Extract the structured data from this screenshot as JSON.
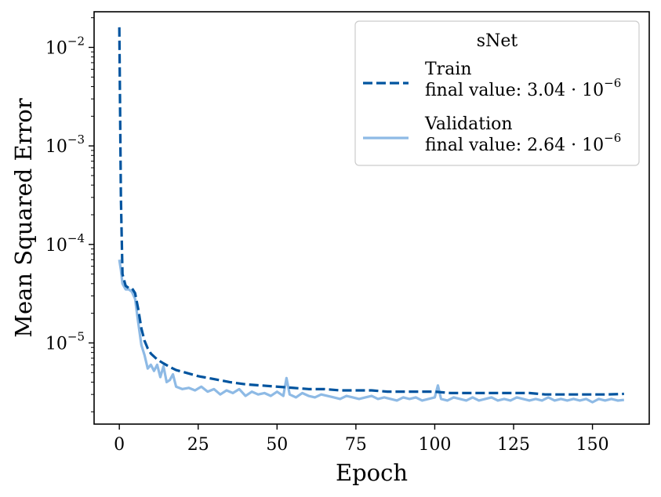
{
  "chart_data": {
    "type": "line",
    "title": "",
    "xlabel": "Epoch",
    "ylabel": "Mean Squared Error",
    "xscale": "linear",
    "yscale": "log",
    "xlim": [
      -8,
      168
    ],
    "ylim": [
      1.5e-06,
      0.023
    ],
    "xticks": [
      0,
      25,
      50,
      75,
      100,
      125,
      150
    ],
    "xtick_labels": [
      "0",
      "25",
      "50",
      "75",
      "100",
      "125",
      "150"
    ],
    "yticks": [
      1e-05,
      0.0001,
      0.001,
      0.01
    ],
    "ytick_labels": [
      {
        "base": "10",
        "exp": "−5"
      },
      {
        "base": "10",
        "exp": "−4"
      },
      {
        "base": "10",
        "exp": "−3"
      },
      {
        "base": "10",
        "exp": "−2"
      }
    ],
    "legend": {
      "title": "sNet",
      "placement": "top-right",
      "entries": [
        {
          "series": "Train",
          "line1": "Train",
          "line2": "final value: 3.04 · 10",
          "line2_exp": "−6"
        },
        {
          "series": "Validation",
          "line1": "Validation",
          "line2": "final value: 2.64 · 10",
          "line2_exp": "−6"
        }
      ]
    },
    "series": [
      {
        "name": "Train",
        "color": "#00549f",
        "style": "dashed",
        "x": [
          0,
          0.5,
          1,
          2,
          3,
          4,
          5,
          6,
          7,
          8,
          9,
          10,
          12,
          14,
          16,
          18,
          20,
          25,
          30,
          35,
          40,
          45,
          50,
          55,
          60,
          65,
          70,
          75,
          80,
          85,
          90,
          95,
          100,
          105,
          110,
          115,
          120,
          125,
          130,
          135,
          140,
          145,
          150,
          155,
          160
        ],
        "y": [
          0.016,
          0.0003,
          5e-05,
          3.8e-05,
          3.6e-05,
          3.6e-05,
          3.2e-05,
          2.2e-05,
          1.4e-05,
          1.05e-05,
          8.8e-06,
          7.8e-06,
          6.8e-06,
          6.2e-06,
          5.7e-06,
          5.3e-06,
          5.1e-06,
          4.6e-06,
          4.3e-06,
          4e-06,
          3.8e-06,
          3.7e-06,
          3.6e-06,
          3.5e-06,
          3.4e-06,
          3.4e-06,
          3.3e-06,
          3.3e-06,
          3.3e-06,
          3.2e-06,
          3.2e-06,
          3.2e-06,
          3.2e-06,
          3.1e-06,
          3.1e-06,
          3.1e-06,
          3.1e-06,
          3.1e-06,
          3.1e-06,
          3e-06,
          3e-06,
          3e-06,
          3e-06,
          3e-06,
          3.04e-06
        ]
      },
      {
        "name": "Validation",
        "color": "#8ebae5",
        "style": "solid",
        "x": [
          0,
          0.5,
          1,
          2,
          3,
          4,
          5,
          6,
          7,
          8,
          9,
          10,
          11,
          12,
          13,
          14,
          15,
          16,
          17,
          18,
          20,
          22,
          24,
          26,
          28,
          30,
          32,
          34,
          36,
          38,
          40,
          42,
          44,
          46,
          48,
          50,
          52,
          53,
          54,
          56,
          58,
          60,
          62,
          64,
          66,
          68,
          70,
          72,
          74,
          76,
          78,
          80,
          82,
          84,
          86,
          88,
          90,
          92,
          94,
          96,
          98,
          100,
          101,
          102,
          104,
          106,
          108,
          110,
          112,
          114,
          116,
          118,
          120,
          122,
          124,
          126,
          128,
          130,
          132,
          134,
          136,
          138,
          140,
          142,
          144,
          146,
          148,
          150,
          152,
          154,
          156,
          158,
          160
        ],
        "y": [
          7e-05,
          5.5e-05,
          4e-05,
          3.5e-05,
          3.5e-05,
          3.3e-05,
          2.8e-05,
          1.6e-05,
          9.5e-06,
          7.5e-06,
          5.5e-06,
          6e-06,
          5.2e-06,
          6e-06,
          4.5e-06,
          5.8e-06,
          4e-06,
          4.2e-06,
          4.8e-06,
          3.6e-06,
          3.4e-06,
          3.5e-06,
          3.3e-06,
          3.6e-06,
          3.2e-06,
          3.4e-06,
          3e-06,
          3.3e-06,
          3.1e-06,
          3.4e-06,
          2.9e-06,
          3.2e-06,
          3e-06,
          3.1e-06,
          2.9e-06,
          3.2e-06,
          2.9e-06,
          4.4e-06,
          3e-06,
          2.8e-06,
          3.1e-06,
          2.9e-06,
          2.8e-06,
          3e-06,
          2.9e-06,
          2.8e-06,
          2.7e-06,
          2.9e-06,
          2.8e-06,
          2.7e-06,
          2.8e-06,
          2.9e-06,
          2.7e-06,
          2.8e-06,
          2.7e-06,
          2.6e-06,
          2.8e-06,
          2.7e-06,
          2.8e-06,
          2.6e-06,
          2.7e-06,
          2.8e-06,
          3.7e-06,
          2.7e-06,
          2.6e-06,
          2.8e-06,
          2.7e-06,
          2.6e-06,
          2.8e-06,
          2.6e-06,
          2.7e-06,
          2.8e-06,
          2.6e-06,
          2.7e-06,
          2.6e-06,
          2.8e-06,
          2.7e-06,
          2.6e-06,
          2.7e-06,
          2.6e-06,
          2.8e-06,
          2.6e-06,
          2.7e-06,
          2.6e-06,
          2.7e-06,
          2.6e-06,
          2.7e-06,
          2.5e-06,
          2.7e-06,
          2.6e-06,
          2.7e-06,
          2.6e-06,
          2.64e-06
        ]
      }
    ]
  }
}
